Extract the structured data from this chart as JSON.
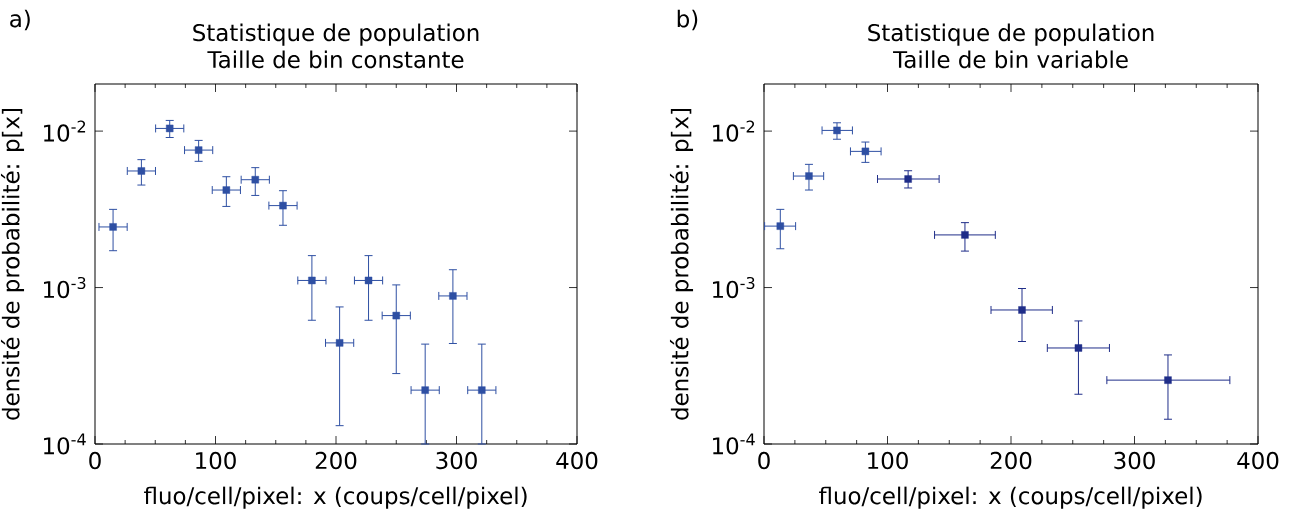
{
  "chart_data": [
    {
      "type": "scatter",
      "title": "Statistique de population",
      "subtitle": "Taille de bin constante",
      "xlabel": "fluo/cell/pixel: x (coups/cell/pixel)",
      "ylabel": "densité de probabilité: p[x]",
      "annotations": [
        "a)"
      ],
      "log": "y",
      "marker": "square",
      "color": "#2e4fa3",
      "x": [
        15,
        38.5,
        62,
        86,
        109,
        133,
        156,
        180,
        203,
        227,
        250,
        274,
        297,
        321
      ],
      "values": [
        0.00244,
        0.00556,
        0.0104,
        0.00756,
        0.0042,
        0.00489,
        0.00334,
        0.00111,
        0.000443,
        0.00111,
        0.000662,
        0.000221,
        0.000884,
        0.000221
      ],
      "errors": [
        [
          0.00172,
          0.00316
        ],
        [
          0.00452,
          0.00657
        ],
        [
          0.0091,
          0.0117
        ],
        [
          0.00641,
          0.00872
        ],
        [
          0.0033,
          0.00511
        ],
        [
          0.00388,
          0.00584
        ],
        [
          0.0025,
          0.00416
        ],
        [
          0.000618,
          0.0016
        ],
        [
          0.000131,
          0.000752
        ],
        [
          0.000618,
          0.0016
        ],
        [
          0.000282,
          0.00104
        ],
        [
          0.0001,
          0.000435
        ],
        [
          0.000439,
          0.0013
        ],
        [
          0.0001,
          0.000435
        ]
      ],
      "xerrors": [
        [
          3.3,
          26.7
        ],
        [
          26.8,
          50.2
        ],
        [
          50.3,
          73.7
        ],
        [
          74.3,
          97.7
        ],
        [
          97.3,
          120.7
        ],
        [
          121.3,
          144.7
        ],
        [
          144.3,
          167.7
        ],
        [
          168.3,
          191.7
        ],
        [
          191.3,
          214.7
        ],
        [
          215.3,
          238.7
        ],
        [
          238.3,
          261.7
        ],
        [
          262.3,
          285.7
        ],
        [
          285.3,
          308.7
        ],
        [
          309.3,
          332.7
        ]
      ],
      "xlim": [
        0,
        400
      ],
      "xticks": [
        0,
        100,
        200,
        300,
        400
      ],
      "ylim": [
        0.0001,
        0.02
      ],
      "yticks": [
        {
          "value": 0.0001,
          "label": "10$^{-4}$"
        },
        {
          "value": 0.001,
          "label": "10$^{-3}$"
        },
        {
          "value": 0.01,
          "label": "10$^{-2}$"
        }
      ]
    },
    {
      "type": "scatter",
      "title": "Statistique de population",
      "subtitle": "Taille de bin variable",
      "xlabel": "fluo/cell/pixel: x (coups/cell/pixel)",
      "ylabel": "densité de probabilité: p[x]",
      "annotations": [
        "b)"
      ],
      "log": "y",
      "marker": "square",
      "colors": [
        "#2e4fa3",
        "#2e4fa3",
        "#2e4fa3",
        "#2e4fa3",
        "#1f2d89",
        "#1f2d89",
        "#1f2d89",
        "#1f2d89",
        "#1f2d89"
      ],
      "x": [
        13.2,
        36.4,
        59.1,
        82.1,
        116.7,
        162.7,
        208.9,
        254.6,
        327.1
      ],
      "values": [
        0.00247,
        0.00516,
        0.0101,
        0.00742,
        0.00494,
        0.00217,
        0.000719,
        0.000411,
        0.000256
      ],
      "errors": [
        [
          0.00177,
          0.00316
        ],
        [
          0.0042,
          0.00613
        ],
        [
          0.00887,
          0.0113
        ],
        [
          0.00631,
          0.00851
        ],
        [
          0.00433,
          0.00558
        ],
        [
          0.00171,
          0.0026
        ],
        [
          0.000452,
          0.000986
        ],
        [
          0.000208,
          0.000612
        ],
        [
          0.000144,
          0.000371
        ]
      ],
      "xerrors": [
        [
          0.5,
          25.6
        ],
        [
          23.8,
          48.3
        ],
        [
          47,
          71.6
        ],
        [
          70,
          94.8
        ],
        [
          91.9,
          141.8
        ],
        [
          138.1,
          187.3
        ],
        [
          183.8,
          233.5
        ],
        [
          229.4,
          279.7
        ],
        [
          277.6,
          377.2
        ]
      ],
      "xlim": [
        0,
        400
      ],
      "xticks": [
        0,
        100,
        200,
        300,
        400
      ],
      "ylim": [
        0.0001,
        0.02
      ],
      "yticks": [
        {
          "value": 0.0001,
          "label": "10$^{-4}$"
        },
        {
          "value": 0.001,
          "label": "10$^{-3}$"
        },
        {
          "value": 0.01,
          "label": "10$^{-2}$"
        }
      ]
    }
  ]
}
